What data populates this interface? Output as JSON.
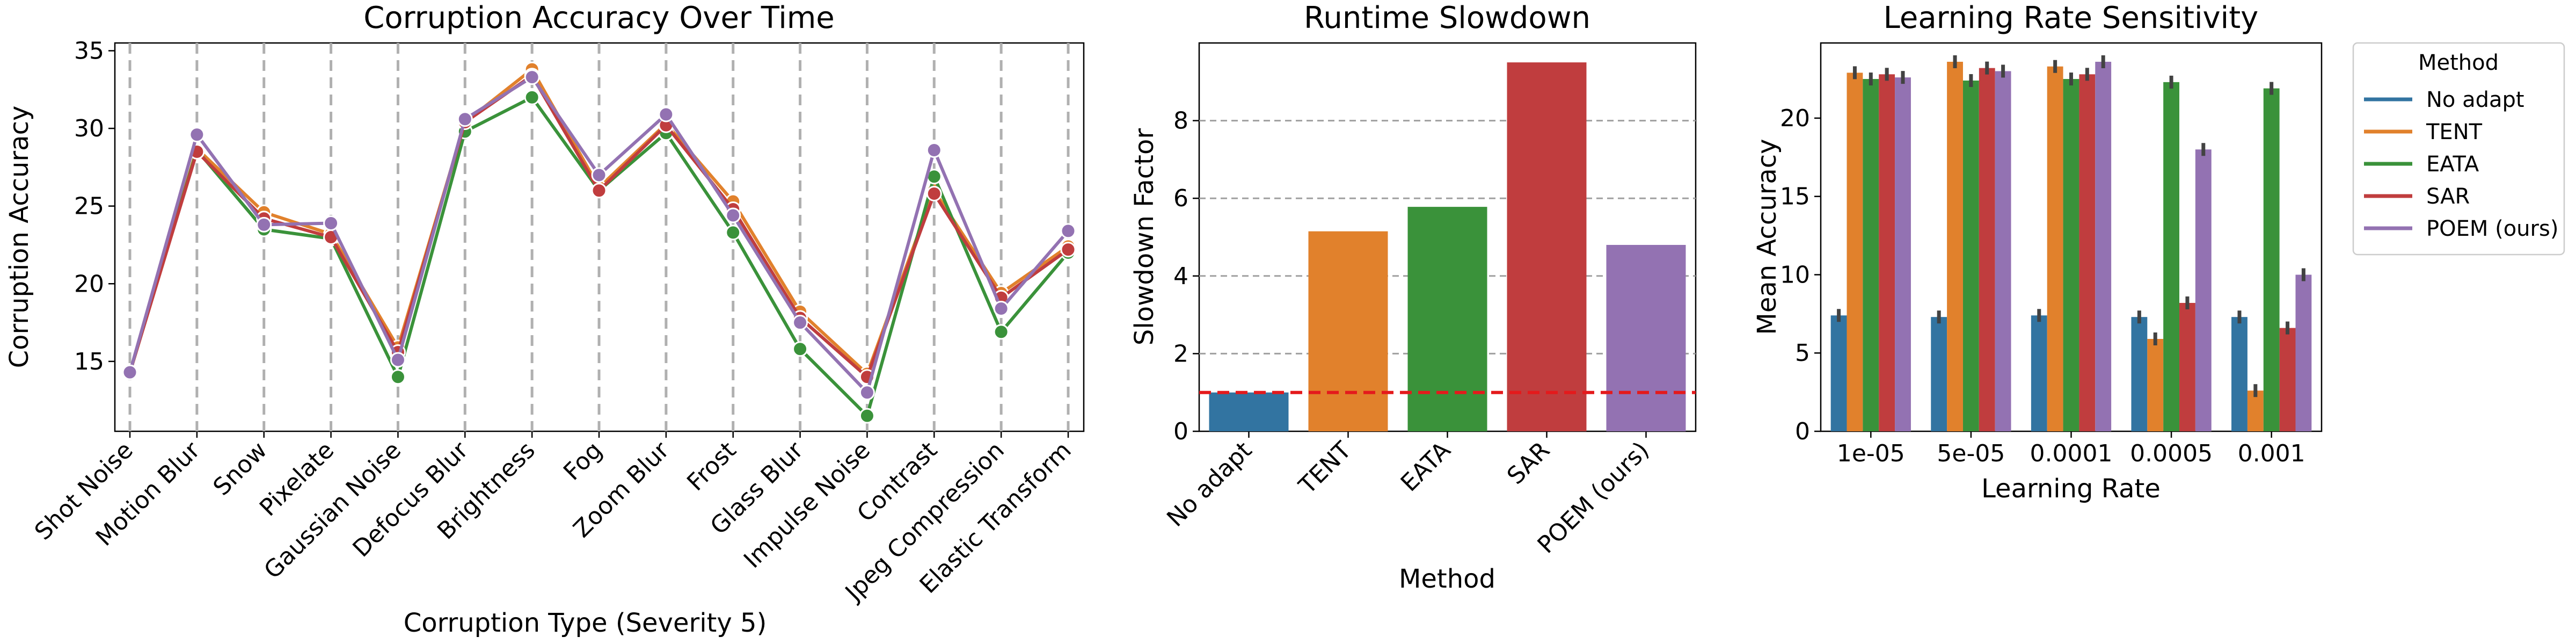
{
  "colors": {
    "No adapt": "#3274a1",
    "TENT": "#e1812c",
    "EATA": "#3a923a",
    "SAR": "#c03d3e",
    "POEM (ours)": "#9372b2"
  },
  "chart_data": [
    {
      "type": "line",
      "title": "Corruption Accuracy Over Time",
      "xlabel": "Corruption Type (Severity 5)",
      "ylabel": "Corruption Accuracy",
      "ylim": [
        10.5,
        35.5
      ],
      "yticks": [
        15,
        20,
        25,
        30,
        35
      ],
      "grid": "vertical dashed",
      "categories": [
        "Shot Noise",
        "Motion Blur",
        "Snow",
        "Pixelate",
        "Gaussian Noise",
        "Defocus Blur",
        "Brightness",
        "Fog",
        "Zoom Blur",
        "Frost",
        "Glass Blur",
        "Impulse Noise",
        "Contrast",
        "Jpeg Compression",
        "Elastic Transform"
      ],
      "series": [
        {
          "name": "TENT",
          "values": [
            14.3,
            28.7,
            24.6,
            23.2,
            15.9,
            30.4,
            33.8,
            26.2,
            30.3,
            25.3,
            18.2,
            14.2,
            26.0,
            19.4,
            22.4
          ]
        },
        {
          "name": "EATA",
          "values": [
            14.3,
            28.6,
            23.5,
            22.9,
            14.0,
            29.8,
            32.0,
            26.0,
            29.7,
            23.3,
            15.8,
            11.5,
            26.9,
            16.9,
            22.0
          ]
        },
        {
          "name": "SAR",
          "values": [
            14.3,
            28.5,
            24.2,
            23.0,
            15.6,
            30.4,
            33.4,
            26.0,
            30.2,
            24.8,
            17.8,
            14.0,
            25.8,
            19.1,
            22.2
          ]
        },
        {
          "name": "POEM (ours)",
          "values": [
            14.3,
            29.6,
            23.8,
            23.9,
            15.1,
            30.6,
            33.3,
            27.0,
            30.9,
            24.4,
            17.5,
            13.0,
            28.6,
            18.4,
            23.4
          ]
        }
      ]
    },
    {
      "type": "bar",
      "title": "Runtime Slowdown",
      "xlabel": "Method",
      "ylabel": "Slowdown Factor",
      "ylim": [
        0,
        10
      ],
      "yticks": [
        0,
        2,
        4,
        6,
        8
      ],
      "grid": "horizontal dashed",
      "categories": [
        "No adapt",
        "TENT",
        "EATA",
        "SAR",
        "POEM (ours)"
      ],
      "values": [
        1.0,
        5.15,
        5.78,
        9.5,
        4.8
      ],
      "reference_line": 1.0
    },
    {
      "type": "bar",
      "title": "Learning Rate Sensitivity",
      "xlabel": "Learning Rate",
      "ylabel": "Mean Accuracy",
      "ylim": [
        0,
        24.8
      ],
      "yticks": [
        0,
        5,
        10,
        15,
        20
      ],
      "categories": [
        "1e-05",
        "5e-05",
        "0.0001",
        "0.0005",
        "0.001"
      ],
      "series": [
        {
          "name": "No adapt",
          "values": [
            7.4,
            7.3,
            7.4,
            7.3,
            7.3
          ]
        },
        {
          "name": "TENT",
          "values": [
            22.9,
            23.6,
            23.3,
            5.9,
            2.6
          ]
        },
        {
          "name": "EATA",
          "values": [
            22.5,
            22.4,
            22.5,
            22.3,
            21.9
          ]
        },
        {
          "name": "SAR",
          "values": [
            22.8,
            23.2,
            22.8,
            8.2,
            6.6
          ]
        },
        {
          "name": "POEM (ours)",
          "values": [
            22.6,
            23.0,
            23.6,
            18.0,
            10.0
          ]
        }
      ],
      "legend": {
        "title": "Method",
        "placement": "outside-right",
        "entries": [
          "No adapt",
          "TENT",
          "EATA",
          "SAR",
          "POEM (ours)"
        ]
      }
    }
  ]
}
